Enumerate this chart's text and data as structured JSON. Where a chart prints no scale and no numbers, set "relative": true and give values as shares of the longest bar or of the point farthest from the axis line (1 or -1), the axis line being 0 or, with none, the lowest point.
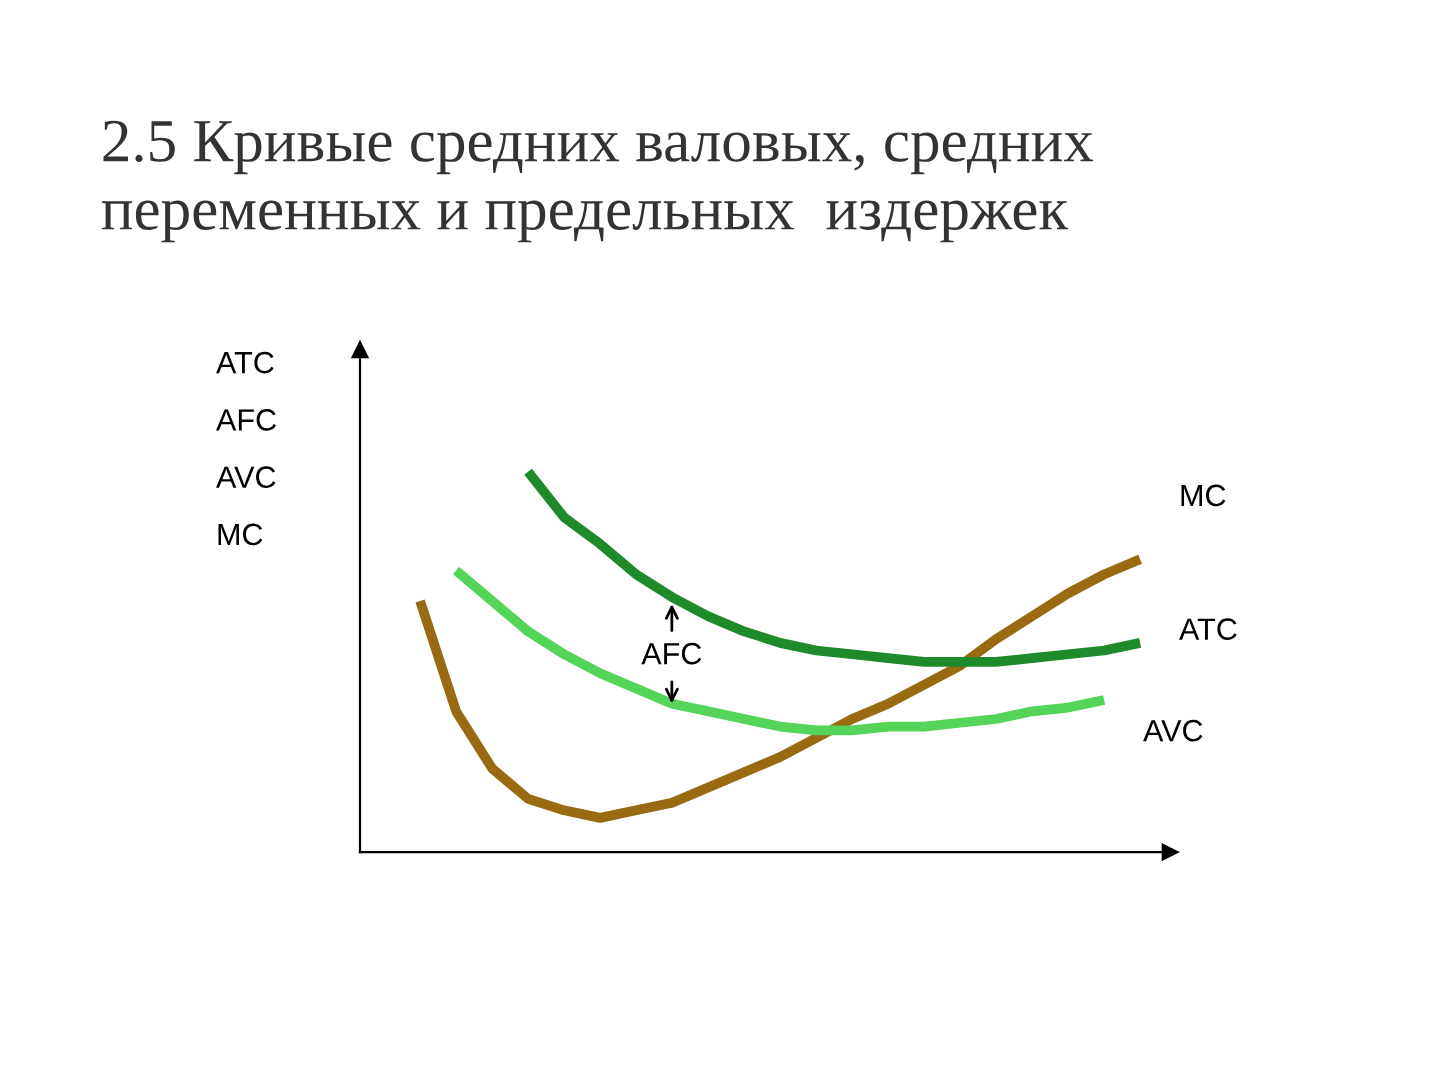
{
  "chart_data": {
    "type": "line",
    "relative": true,
    "title": "2.5 Кривые средних валовых, средних\nпеременных и предельных  издержек",
    "ylabel": "ATC\nAFC\nAVC\nMC",
    "categories": [
      null,
      null,
      null,
      null,
      null,
      null,
      null,
      null,
      null,
      null,
      null,
      null,
      null,
      null,
      null,
      null,
      null,
      null,
      null,
      null,
      null
    ],
    "series": [
      {
        "name": "MC",
        "color": "#9a6a12",
        "values": [
          0.66,
          0.37,
          0.22,
          0.14,
          0.11,
          0.09,
          0.11,
          0.13,
          0.17,
          0.21,
          0.25,
          0.3,
          0.35,
          0.39,
          0.44,
          0.49,
          0.56,
          0.62,
          0.68,
          0.73,
          0.77
        ]
      },
      {
        "name": "ATC",
        "color": "#1e8a2a",
        "values": [
          null,
          null,
          null,
          1,
          0.88,
          0.81,
          0.73,
          0.67,
          0.62,
          0.58,
          0.55,
          0.53,
          0.52,
          0.51,
          0.5,
          0.5,
          0.5,
          0.51,
          0.52,
          0.53,
          0.55
        ]
      },
      {
        "name": "AVC",
        "color": "#55d45a",
        "values": [
          null,
          0.74,
          0.66,
          0.58,
          0.52,
          0.47,
          0.43,
          0.39,
          0.37,
          0.35,
          0.33,
          0.32,
          0.32,
          0.33,
          0.33,
          0.34,
          0.35,
          0.37,
          0.38,
          0.4,
          null
        ]
      }
    ],
    "annotations": [
      "AFC"
    ],
    "legend": false
  }
}
